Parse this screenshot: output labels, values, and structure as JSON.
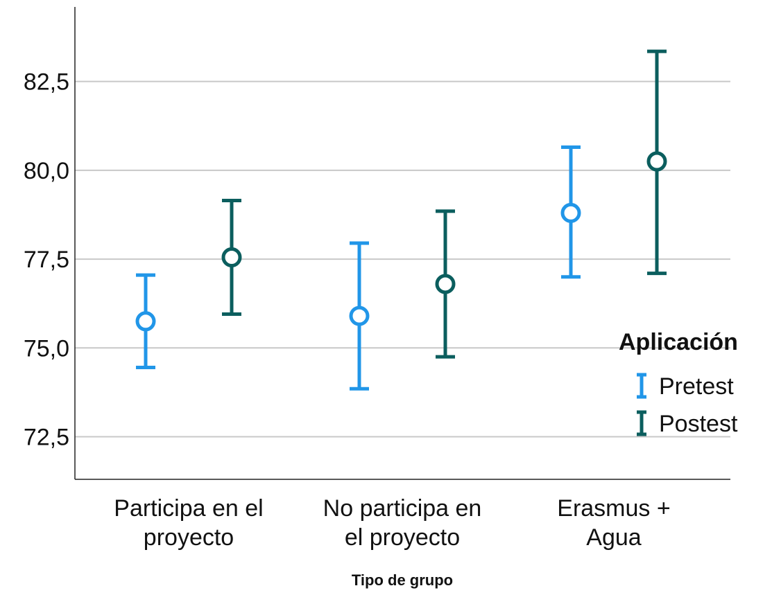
{
  "chart_data": {
    "type": "errorbar",
    "xlabel": "Tipo de grupo",
    "ylabel": "",
    "ylim": [
      71.3,
      84.6
    ],
    "yticks": [
      72.5,
      75.0,
      77.5,
      80.0,
      82.5
    ],
    "ytick_labels": [
      "72,5",
      "75,0",
      "77,5",
      "80,0",
      "82,5"
    ],
    "grid": "horizontal",
    "categories": [
      [
        "Participa en el",
        "proyecto"
      ],
      [
        "No participa en",
        "el proyecto"
      ],
      [
        "Erasmus +",
        "Agua"
      ]
    ],
    "legend": {
      "title": "Aplicación",
      "position": "right"
    },
    "series": [
      {
        "name": "Pretest",
        "color": "#2196e8",
        "mean": [
          75.75,
          75.9,
          78.8
        ],
        "lower": [
          74.45,
          73.85,
          77.0
        ],
        "upper": [
          77.05,
          77.95,
          80.65
        ]
      },
      {
        "name": "Postest",
        "color": "#0b5e5e",
        "mean": [
          77.55,
          76.8,
          80.25
        ],
        "lower": [
          75.95,
          74.75,
          77.1
        ],
        "upper": [
          79.15,
          78.85,
          83.35
        ]
      }
    ]
  }
}
